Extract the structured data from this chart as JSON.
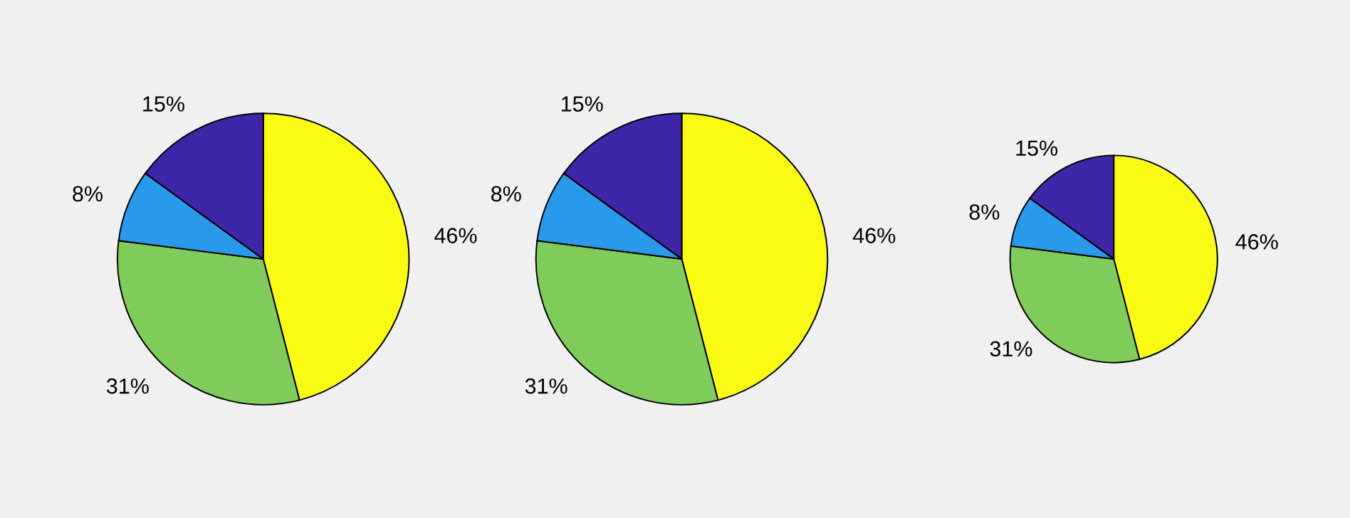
{
  "chart_data": [
    {
      "type": "pie",
      "categories": [
        null,
        null,
        null,
        null
      ],
      "values": [
        46,
        31,
        8,
        15
      ],
      "colors": [
        "#f9fb14",
        "#80cc5a",
        "#2899eb",
        "#3e26a8"
      ],
      "value_labels": [
        "46%",
        "31%",
        "8%",
        "15%"
      ]
    },
    {
      "type": "pie",
      "categories": [
        null,
        null,
        null,
        null
      ],
      "values": [
        46,
        31,
        8,
        15
      ],
      "colors": [
        "#f9fb14",
        "#80cc5a",
        "#2899eb",
        "#3e26a8"
      ],
      "value_labels": [
        "46%",
        "31%",
        "8%",
        "15%"
      ]
    },
    {
      "type": "pie",
      "categories": [
        null,
        null,
        null,
        null
      ],
      "values": [
        46,
        31,
        8,
        15
      ],
      "colors": [
        "#f9fb14",
        "#80cc5a",
        "#2899eb",
        "#3e26a8"
      ],
      "value_labels": [
        "46%",
        "31%",
        "8%",
        "15%"
      ]
    }
  ]
}
